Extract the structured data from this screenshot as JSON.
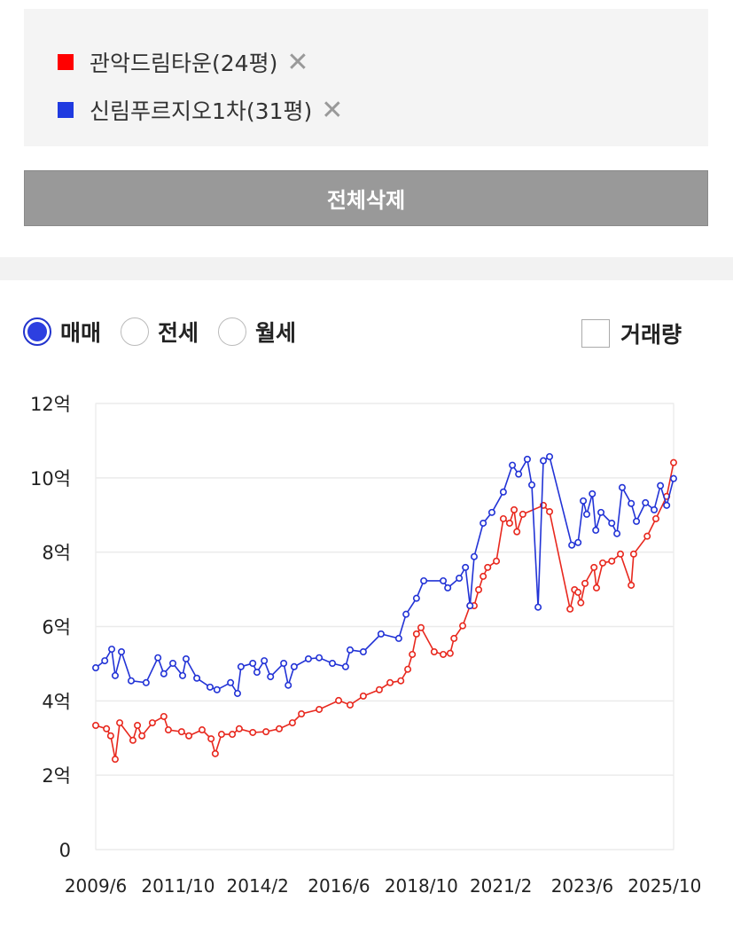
{
  "legend": [
    {
      "label": "관악드림타운(24평)",
      "color": "#ff0000",
      "remove": "✕"
    },
    {
      "label": "신림푸르지오1차(31평)",
      "color": "#1f3ae0",
      "remove": "✕"
    }
  ],
  "delete_all_label": "전체삭제",
  "tabs": [
    {
      "label": "매매",
      "selected": true
    },
    {
      "label": "전세",
      "selected": false
    },
    {
      "label": "월세",
      "selected": false
    }
  ],
  "volume_checkbox": {
    "label": "거래량",
    "checked": false
  },
  "chart_data": {
    "type": "line",
    "ylabel": "",
    "xlabel": "",
    "ylim": [
      0,
      12
    ],
    "yticks": [
      0,
      2,
      4,
      6,
      8,
      10,
      12
    ],
    "ytick_labels": [
      "0",
      "2억",
      "4억",
      "6억",
      "8억",
      "10억",
      "12억"
    ],
    "xlim": [
      2009.42,
      2026.05
    ],
    "xticks": [
      2009.42,
      2011.79,
      2014.08,
      2016.42,
      2018.79,
      2021.08,
      2023.42,
      2025.79
    ],
    "xtick_labels": [
      "2009/6",
      "2011/10",
      "2014/2",
      "2016/6",
      "2018/10",
      "2021/2",
      "2023/6",
      "2025/10"
    ],
    "grid": true,
    "series": [
      {
        "name": "관악드림타운(24평)",
        "color": "#e8281e",
        "points": [
          [
            2009.42,
            3.34
          ],
          [
            2009.73,
            3.25
          ],
          [
            2009.85,
            3.06
          ],
          [
            2009.98,
            2.43
          ],
          [
            2010.11,
            3.41
          ],
          [
            2010.49,
            2.94
          ],
          [
            2010.62,
            3.34
          ],
          [
            2010.75,
            3.06
          ],
          [
            2011.05,
            3.41
          ],
          [
            2011.38,
            3.58
          ],
          [
            2011.51,
            3.22
          ],
          [
            2011.89,
            3.17
          ],
          [
            2012.1,
            3.06
          ],
          [
            2012.48,
            3.22
          ],
          [
            2012.74,
            2.98
          ],
          [
            2012.86,
            2.58
          ],
          [
            2013.04,
            3.1
          ],
          [
            2013.35,
            3.1
          ],
          [
            2013.55,
            3.25
          ],
          [
            2013.94,
            3.15
          ],
          [
            2014.32,
            3.17
          ],
          [
            2014.7,
            3.25
          ],
          [
            2015.08,
            3.41
          ],
          [
            2015.34,
            3.65
          ],
          [
            2015.85,
            3.77
          ],
          [
            2016.41,
            4.01
          ],
          [
            2016.74,
            3.89
          ],
          [
            2017.12,
            4.13
          ],
          [
            2017.58,
            4.3
          ],
          [
            2017.89,
            4.49
          ],
          [
            2018.2,
            4.54
          ],
          [
            2018.4,
            4.85
          ],
          [
            2018.53,
            5.25
          ],
          [
            2018.65,
            5.8
          ],
          [
            2018.78,
            5.97
          ],
          [
            2019.16,
            5.32
          ],
          [
            2019.42,
            5.25
          ],
          [
            2019.62,
            5.28
          ],
          [
            2019.73,
            5.68
          ],
          [
            2019.98,
            6.02
          ],
          [
            2020.19,
            6.56
          ],
          [
            2020.31,
            6.56
          ],
          [
            2020.44,
            6.99
          ],
          [
            2020.57,
            7.35
          ],
          [
            2020.7,
            7.59
          ],
          [
            2020.95,
            7.76
          ],
          [
            2021.15,
            8.9
          ],
          [
            2021.33,
            8.78
          ],
          [
            2021.46,
            9.14
          ],
          [
            2021.54,
            8.55
          ],
          [
            2021.71,
            9.02
          ],
          [
            2022.3,
            9.26
          ],
          [
            2022.48,
            9.09
          ],
          [
            2023.07,
            6.47
          ],
          [
            2023.2,
            6.99
          ],
          [
            2023.3,
            6.92
          ],
          [
            2023.38,
            6.64
          ],
          [
            2023.5,
            7.16
          ],
          [
            2023.76,
            7.59
          ],
          [
            2023.83,
            7.04
          ],
          [
            2024.01,
            7.71
          ],
          [
            2024.27,
            7.76
          ],
          [
            2024.52,
            7.95
          ],
          [
            2024.83,
            7.11
          ],
          [
            2024.9,
            7.95
          ],
          [
            2025.29,
            8.43
          ],
          [
            2025.54,
            8.9
          ],
          [
            2025.85,
            9.5
          ],
          [
            2026.05,
            10.41
          ]
        ]
      },
      {
        "name": "신림푸르지오1차(31평)",
        "color": "#2233d6",
        "points": [
          [
            2009.42,
            4.89
          ],
          [
            2009.68,
            5.08
          ],
          [
            2009.88,
            5.39
          ],
          [
            2009.98,
            4.68
          ],
          [
            2010.16,
            5.32
          ],
          [
            2010.44,
            4.54
          ],
          [
            2010.87,
            4.49
          ],
          [
            2011.21,
            5.16
          ],
          [
            2011.38,
            4.73
          ],
          [
            2011.64,
            5.01
          ],
          [
            2011.92,
            4.68
          ],
          [
            2012.02,
            5.13
          ],
          [
            2012.33,
            4.61
          ],
          [
            2012.71,
            4.37
          ],
          [
            2012.91,
            4.3
          ],
          [
            2013.3,
            4.49
          ],
          [
            2013.5,
            4.2
          ],
          [
            2013.6,
            4.92
          ],
          [
            2013.94,
            5.01
          ],
          [
            2014.06,
            4.77
          ],
          [
            2014.27,
            5.08
          ],
          [
            2014.45,
            4.65
          ],
          [
            2014.83,
            5.01
          ],
          [
            2014.96,
            4.42
          ],
          [
            2015.13,
            4.92
          ],
          [
            2015.54,
            5.13
          ],
          [
            2015.85,
            5.16
          ],
          [
            2016.23,
            5.01
          ],
          [
            2016.61,
            4.92
          ],
          [
            2016.74,
            5.37
          ],
          [
            2017.12,
            5.32
          ],
          [
            2017.63,
            5.8
          ],
          [
            2018.14,
            5.68
          ],
          [
            2018.35,
            6.33
          ],
          [
            2018.65,
            6.76
          ],
          [
            2018.86,
            7.23
          ],
          [
            2019.42,
            7.23
          ],
          [
            2019.55,
            7.04
          ],
          [
            2019.88,
            7.3
          ],
          [
            2020.06,
            7.59
          ],
          [
            2020.19,
            6.56
          ],
          [
            2020.31,
            7.88
          ],
          [
            2020.57,
            8.78
          ],
          [
            2020.82,
            9.07
          ],
          [
            2021.15,
            9.62
          ],
          [
            2021.41,
            10.34
          ],
          [
            2021.59,
            10.1
          ],
          [
            2021.84,
            10.5
          ],
          [
            2021.97,
            9.81
          ],
          [
            2022.15,
            6.52
          ],
          [
            2022.3,
            10.46
          ],
          [
            2022.48,
            10.57
          ],
          [
            2023.12,
            8.19
          ],
          [
            2023.3,
            8.26
          ],
          [
            2023.45,
            9.38
          ],
          [
            2023.55,
            9.02
          ],
          [
            2023.71,
            9.57
          ],
          [
            2023.81,
            8.59
          ],
          [
            2023.96,
            9.07
          ],
          [
            2024.27,
            8.78
          ],
          [
            2024.42,
            8.5
          ],
          [
            2024.57,
            9.74
          ],
          [
            2024.83,
            9.31
          ],
          [
            2024.98,
            8.83
          ],
          [
            2025.24,
            9.33
          ],
          [
            2025.49,
            9.14
          ],
          [
            2025.67,
            9.79
          ],
          [
            2025.85,
            9.26
          ],
          [
            2026.05,
            9.98
          ]
        ]
      }
    ]
  }
}
